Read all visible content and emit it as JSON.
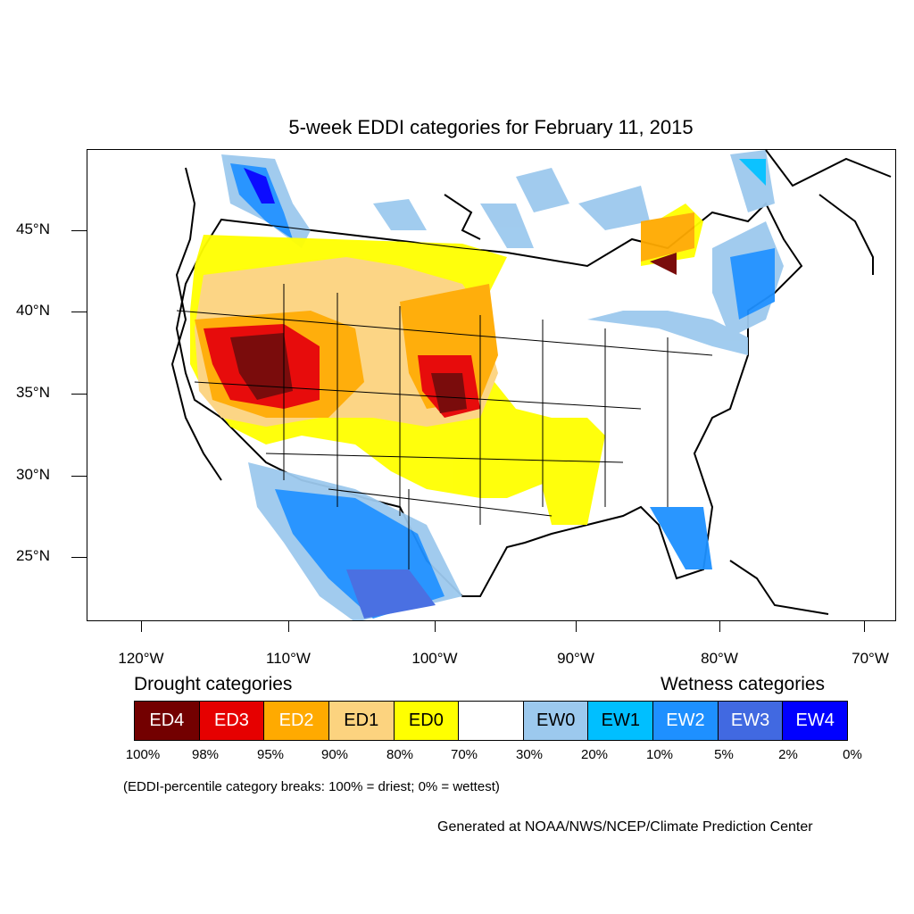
{
  "title": "5-week EDDI categories for February 11, 2015",
  "axes": {
    "lat_labels": [
      "45°N",
      "40°N",
      "35°N",
      "30°N",
      "25°N"
    ],
    "lon_labels": [
      "120°W",
      "110°W",
      "100°W",
      "90°W",
      "80°W",
      "70°W"
    ]
  },
  "legend": {
    "drought_heading": "Drought categories",
    "wetness_heading": "Wetness categories",
    "categories": [
      {
        "label": "ED4",
        "color": "#730000",
        "text_color": "#ffffff"
      },
      {
        "label": "ED3",
        "color": "#e60000",
        "text_color": "#ffffff"
      },
      {
        "label": "ED2",
        "color": "#ffaa00",
        "text_color": "#ffffff"
      },
      {
        "label": "ED1",
        "color": "#fcd37f",
        "text_color": "#000000"
      },
      {
        "label": "ED0",
        "color": "#ffff00",
        "text_color": "#000000"
      },
      {
        "label": "",
        "color": "#ffffff",
        "text_color": "#000000"
      },
      {
        "label": "EW0",
        "color": "#9cc9ee",
        "text_color": "#000000"
      },
      {
        "label": "EW1",
        "color": "#00bfff",
        "text_color": "#000000"
      },
      {
        "label": "EW2",
        "color": "#1e90ff",
        "text_color": "#ffffff"
      },
      {
        "label": "EW3",
        "color": "#4169e1",
        "text_color": "#ffffff"
      },
      {
        "label": "EW4",
        "color": "#0000ff",
        "text_color": "#ffffff"
      }
    ],
    "breaks": [
      "100%",
      "98%",
      "95%",
      "90%",
      "80%",
      "70%",
      "30%",
      "20%",
      "10%",
      "5%",
      "2%",
      "0%"
    ]
  },
  "note": "(EDDI-percentile category breaks: 100% = driest; 0% = wettest)",
  "credit": "Generated at NOAA/NWS/NCEP/Climate Prediction Center"
}
